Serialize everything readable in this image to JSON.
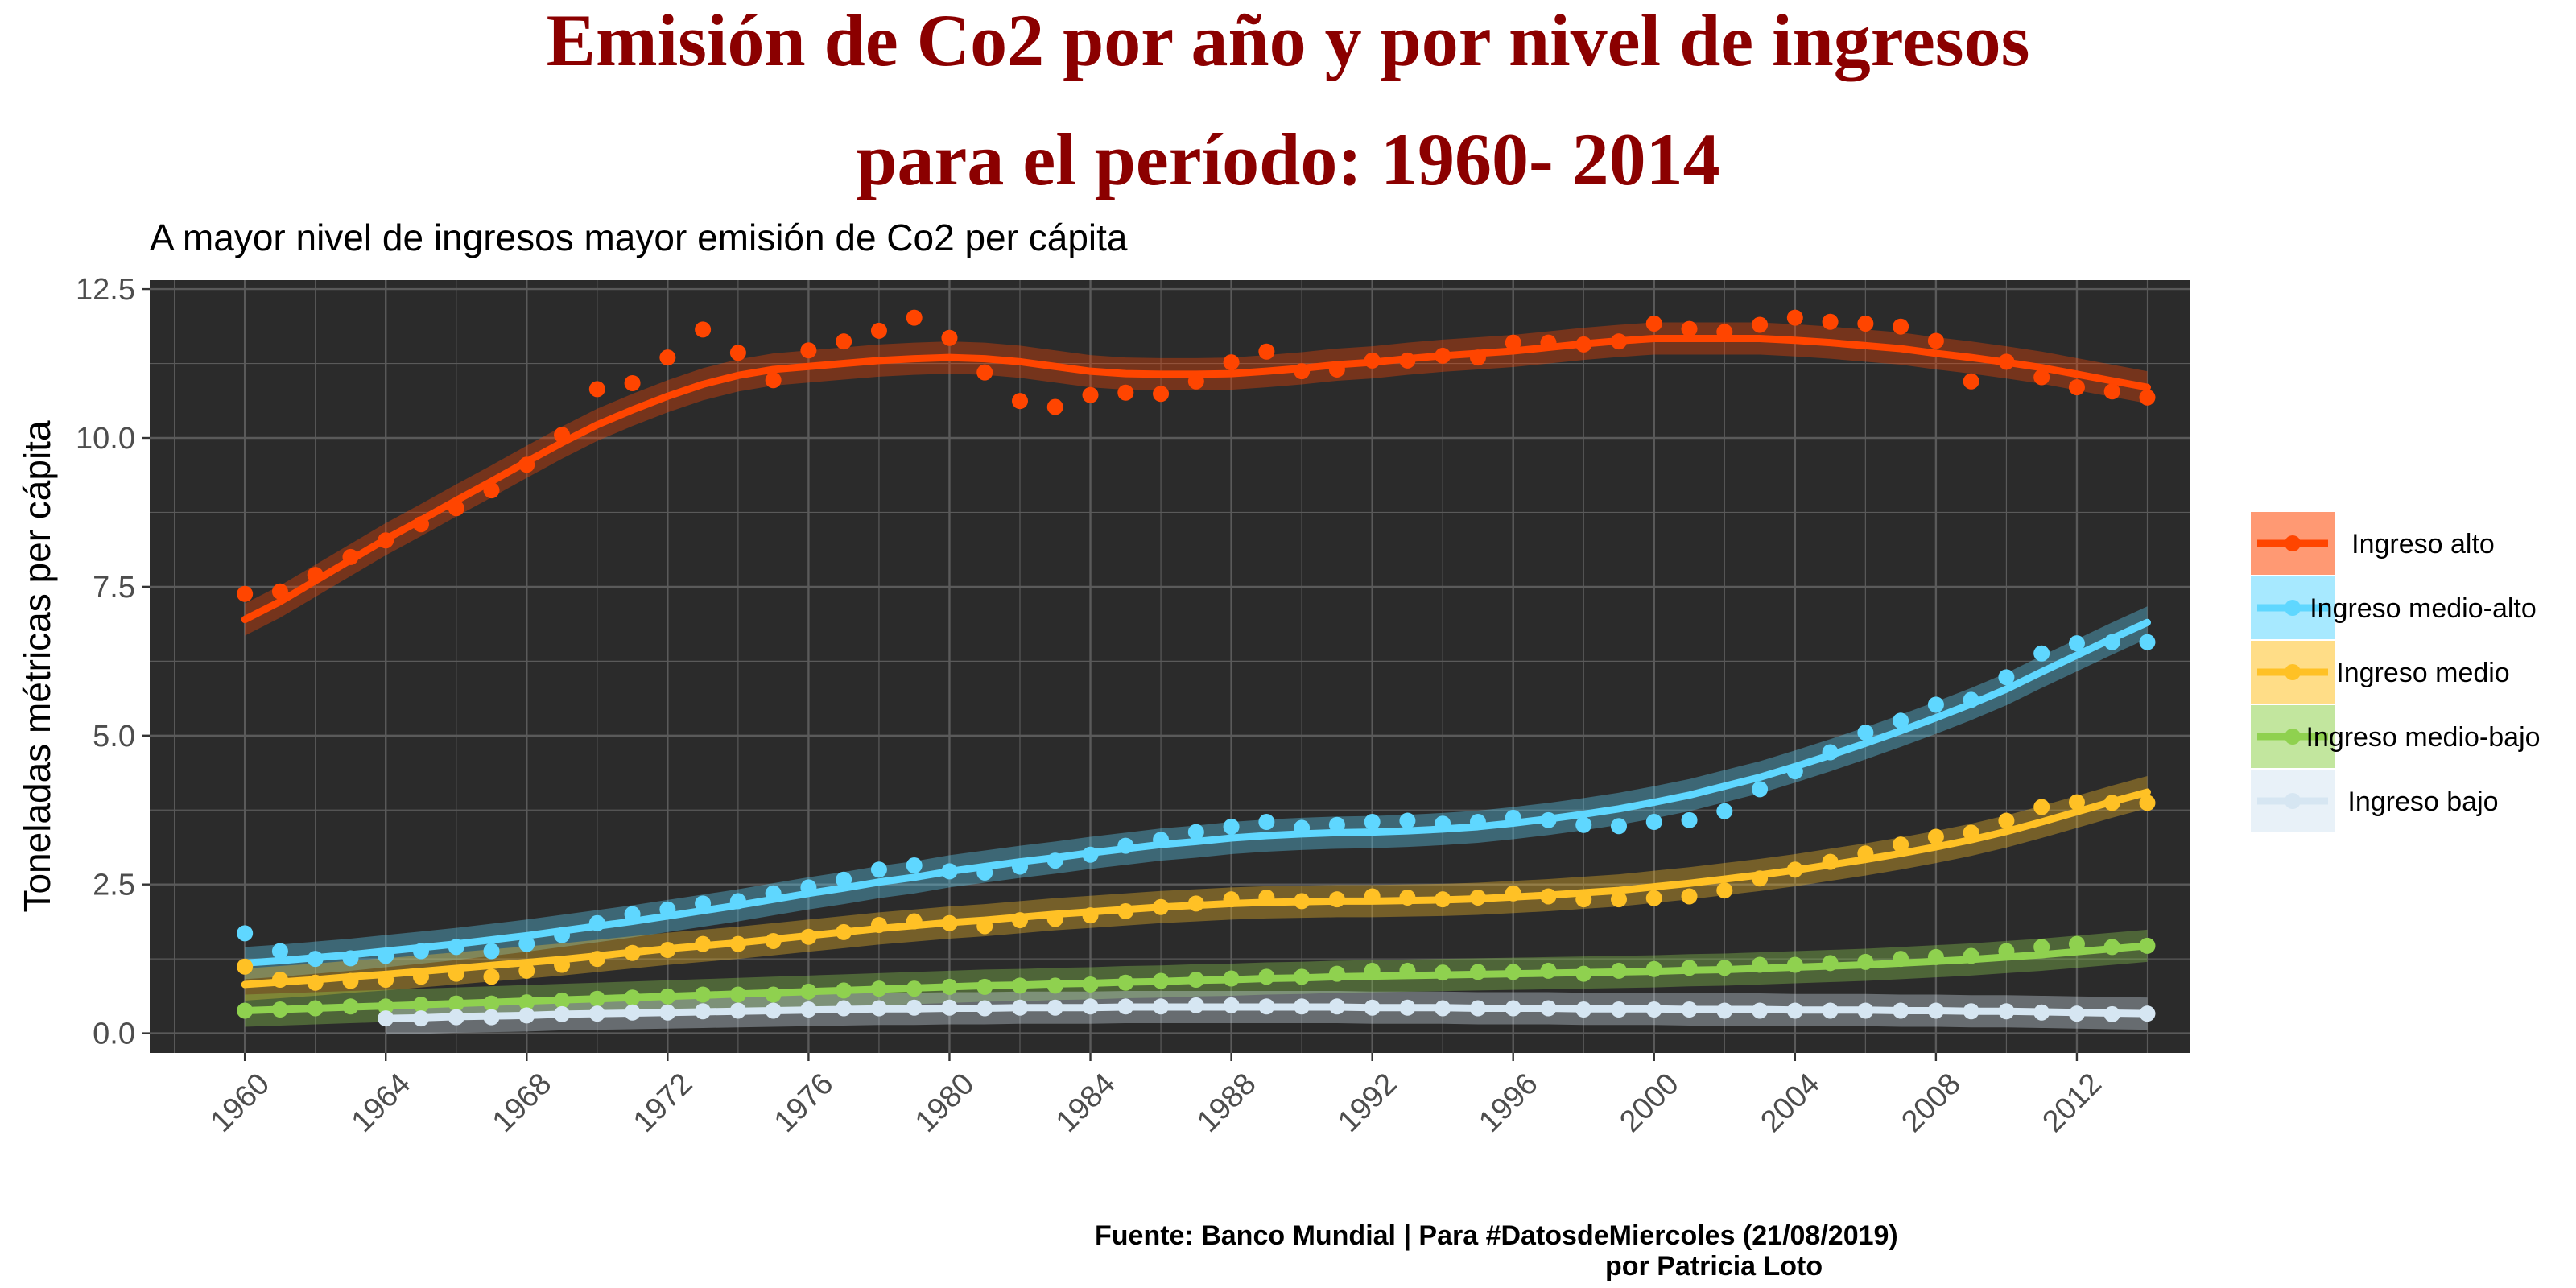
{
  "title_lines": [
    "Emisión de Co2 por año y por nivel de ingresos",
    "para el período: 1960- 2014"
  ],
  "subtitle": "A mayor nivel de ingresos mayor emisión de Co2 per cápita",
  "caption_lines": [
    "Fuente: Banco Mundial | Para #DatosdeMiercoles (21/08/2019)",
    "por Patricia Loto"
  ],
  "colors": {
    "panel_background": "#2b2b2b",
    "grid": "#5a5a5a",
    "title": "#8b0000"
  },
  "chart_data": {
    "type": "scatter",
    "smooth": true,
    "confidence_band": true,
    "title": "Emisión de Co2 por año y por nivel de ingresos para el período: 1960- 2014",
    "subtitle": "A mayor nivel de ingresos mayor emisión de Co2 per cápita",
    "xlabel": "",
    "ylabel": "Toneladas métricas per cápita",
    "xlim": [
      1957.3,
      2015.2
    ],
    "ylim": [
      -0.33,
      12.65
    ],
    "x_ticks": [
      1960,
      1964,
      1968,
      1972,
      1976,
      1980,
      1984,
      1988,
      1992,
      1996,
      2000,
      2004,
      2008,
      2012
    ],
    "y_ticks": [
      0.0,
      2.5,
      5.0,
      7.5,
      10.0,
      12.5
    ],
    "y_tick_labels": [
      "0.0",
      "2.5",
      "5.0",
      "7.5",
      "10.0",
      "12.5"
    ],
    "grid": true,
    "legend_position": "right",
    "series": [
      {
        "name": "Ingreso alto",
        "color": "#ff4500",
        "x": [
          1960,
          1961,
          1962,
          1963,
          1964,
          1965,
          1966,
          1967,
          1968,
          1969,
          1970,
          1971,
          1972,
          1973,
          1974,
          1975,
          1976,
          1977,
          1978,
          1979,
          1980,
          1981,
          1982,
          1983,
          1984,
          1985,
          1986,
          1987,
          1988,
          1989,
          1990,
          1991,
          1992,
          1993,
          1994,
          1995,
          1996,
          1997,
          1998,
          1999,
          2000,
          2001,
          2002,
          2003,
          2004,
          2005,
          2006,
          2007,
          2008,
          2009,
          2010,
          2011,
          2012,
          2013,
          2014
        ],
        "y": [
          7.38,
          7.42,
          7.7,
          8.0,
          8.28,
          8.55,
          8.82,
          9.12,
          9.55,
          10.05,
          10.82,
          10.92,
          11.35,
          11.82,
          11.43,
          10.97,
          11.47,
          11.62,
          11.8,
          12.02,
          11.68,
          11.1,
          10.62,
          10.52,
          10.72,
          10.76,
          10.74,
          10.95,
          11.27,
          11.45,
          11.12,
          11.15,
          11.3,
          11.3,
          11.38,
          11.35,
          11.6,
          11.6,
          11.57,
          11.62,
          11.92,
          11.83,
          11.78,
          11.9,
          12.02,
          11.95,
          11.92,
          11.87,
          11.63,
          10.95,
          11.28,
          11.02,
          10.85,
          10.78,
          10.68
        ],
        "smooth": [
          6.95,
          7.25,
          7.6,
          7.95,
          8.3,
          8.62,
          8.95,
          9.27,
          9.6,
          9.92,
          10.22,
          10.47,
          10.7,
          10.9,
          11.05,
          11.15,
          11.2,
          11.25,
          11.3,
          11.33,
          11.35,
          11.33,
          11.28,
          11.2,
          11.12,
          11.08,
          11.07,
          11.07,
          11.08,
          11.12,
          11.17,
          11.23,
          11.27,
          11.33,
          11.38,
          11.42,
          11.46,
          11.52,
          11.58,
          11.63,
          11.67,
          11.67,
          11.67,
          11.67,
          11.64,
          11.6,
          11.55,
          11.5,
          11.42,
          11.35,
          11.27,
          11.18,
          11.07,
          10.96,
          10.85
        ]
      },
      {
        "name": "Ingreso medio-alto",
        "color": "#5fd7ff",
        "x": [
          1960,
          1961,
          1962,
          1963,
          1964,
          1965,
          1966,
          1967,
          1968,
          1969,
          1970,
          1971,
          1972,
          1973,
          1974,
          1975,
          1976,
          1977,
          1978,
          1979,
          1980,
          1981,
          1982,
          1983,
          1984,
          1985,
          1986,
          1987,
          1988,
          1989,
          1990,
          1991,
          1992,
          1993,
          1994,
          1995,
          1996,
          1997,
          1998,
          1999,
          2000,
          2001,
          2002,
          2003,
          2004,
          2005,
          2006,
          2007,
          2008,
          2009,
          2010,
          2011,
          2012,
          2013,
          2014
        ],
        "y": [
          1.68,
          1.38,
          1.25,
          1.26,
          1.3,
          1.38,
          1.45,
          1.38,
          1.5,
          1.65,
          1.85,
          2.0,
          2.08,
          2.18,
          2.22,
          2.35,
          2.45,
          2.58,
          2.75,
          2.82,
          2.72,
          2.7,
          2.8,
          2.9,
          3.0,
          3.15,
          3.25,
          3.38,
          3.47,
          3.55,
          3.45,
          3.5,
          3.55,
          3.57,
          3.52,
          3.55,
          3.62,
          3.58,
          3.5,
          3.48,
          3.55,
          3.58,
          3.73,
          4.1,
          4.4,
          4.72,
          5.05,
          5.25,
          5.52,
          5.6,
          5.98,
          6.38,
          6.55,
          6.57,
          6.57
        ],
        "smooth": [
          1.18,
          1.22,
          1.27,
          1.32,
          1.38,
          1.44,
          1.5,
          1.57,
          1.64,
          1.72,
          1.8,
          1.88,
          1.97,
          2.06,
          2.15,
          2.25,
          2.35,
          2.44,
          2.54,
          2.62,
          2.72,
          2.8,
          2.88,
          2.95,
          3.03,
          3.1,
          3.17,
          3.22,
          3.28,
          3.32,
          3.35,
          3.37,
          3.38,
          3.4,
          3.43,
          3.47,
          3.53,
          3.6,
          3.68,
          3.77,
          3.88,
          4.0,
          4.15,
          4.3,
          4.48,
          4.67,
          4.87,
          5.08,
          5.3,
          5.53,
          5.78,
          6.07,
          6.35,
          6.63,
          6.9
        ]
      },
      {
        "name": "Ingreso medio",
        "color": "#ffc125",
        "x": [
          1960,
          1961,
          1962,
          1963,
          1964,
          1965,
          1966,
          1967,
          1968,
          1969,
          1970,
          1971,
          1972,
          1973,
          1974,
          1975,
          1976,
          1977,
          1978,
          1979,
          1980,
          1981,
          1982,
          1983,
          1984,
          1985,
          1986,
          1987,
          1988,
          1989,
          1990,
          1991,
          1992,
          1993,
          1994,
          1995,
          1996,
          1997,
          1998,
          1999,
          2000,
          2001,
          2002,
          2003,
          2004,
          2005,
          2006,
          2007,
          2008,
          2009,
          2010,
          2011,
          2012,
          2013,
          2014
        ],
        "y": [
          1.12,
          0.9,
          0.85,
          0.88,
          0.9,
          0.95,
          1.0,
          0.95,
          1.05,
          1.15,
          1.25,
          1.35,
          1.4,
          1.5,
          1.5,
          1.55,
          1.62,
          1.7,
          1.82,
          1.88,
          1.85,
          1.8,
          1.9,
          1.92,
          1.98,
          2.05,
          2.12,
          2.18,
          2.25,
          2.28,
          2.22,
          2.25,
          2.3,
          2.28,
          2.25,
          2.28,
          2.35,
          2.3,
          2.25,
          2.25,
          2.27,
          2.3,
          2.4,
          2.6,
          2.75,
          2.88,
          3.02,
          3.17,
          3.3,
          3.37,
          3.57,
          3.8,
          3.88,
          3.87,
          3.87
        ],
        "smooth": [
          0.82,
          0.86,
          0.9,
          0.95,
          0.99,
          1.04,
          1.09,
          1.14,
          1.19,
          1.24,
          1.3,
          1.36,
          1.42,
          1.47,
          1.52,
          1.58,
          1.64,
          1.7,
          1.76,
          1.81,
          1.86,
          1.9,
          1.95,
          2.0,
          2.04,
          2.08,
          2.12,
          2.15,
          2.18,
          2.2,
          2.21,
          2.22,
          2.22,
          2.23,
          2.24,
          2.26,
          2.29,
          2.32,
          2.36,
          2.4,
          2.46,
          2.52,
          2.59,
          2.66,
          2.74,
          2.83,
          2.92,
          3.02,
          3.13,
          3.25,
          3.39,
          3.55,
          3.72,
          3.89,
          4.05
        ]
      },
      {
        "name": "Ingreso medio-bajo",
        "color": "#8fd14f",
        "x": [
          1960,
          1961,
          1962,
          1963,
          1964,
          1965,
          1966,
          1967,
          1968,
          1969,
          1970,
          1971,
          1972,
          1973,
          1974,
          1975,
          1976,
          1977,
          1978,
          1979,
          1980,
          1981,
          1982,
          1983,
          1984,
          1985,
          1986,
          1987,
          1988,
          1989,
          1990,
          1991,
          1992,
          1993,
          1994,
          1995,
          1996,
          1997,
          1998,
          1999,
          2000,
          2001,
          2002,
          2003,
          2004,
          2005,
          2006,
          2007,
          2008,
          2009,
          2010,
          2011,
          2012,
          2013,
          2014
        ],
        "y": [
          0.38,
          0.4,
          0.42,
          0.45,
          0.45,
          0.48,
          0.5,
          0.5,
          0.52,
          0.55,
          0.58,
          0.6,
          0.62,
          0.65,
          0.65,
          0.65,
          0.7,
          0.72,
          0.75,
          0.75,
          0.78,
          0.78,
          0.8,
          0.8,
          0.82,
          0.85,
          0.88,
          0.9,
          0.92,
          0.95,
          0.95,
          1.0,
          1.05,
          1.05,
          1.02,
          1.03,
          1.03,
          1.05,
          1.0,
          1.05,
          1.08,
          1.1,
          1.1,
          1.15,
          1.15,
          1.18,
          1.2,
          1.25,
          1.28,
          1.3,
          1.38,
          1.45,
          1.5,
          1.45,
          1.47
        ],
        "smooth": [
          0.38,
          0.4,
          0.42,
          0.44,
          0.46,
          0.48,
          0.5,
          0.52,
          0.54,
          0.56,
          0.58,
          0.6,
          0.62,
          0.64,
          0.66,
          0.68,
          0.7,
          0.72,
          0.74,
          0.76,
          0.78,
          0.8,
          0.81,
          0.83,
          0.84,
          0.86,
          0.87,
          0.89,
          0.9,
          0.92,
          0.93,
          0.95,
          0.96,
          0.97,
          0.98,
          0.99,
          1.0,
          1.01,
          1.02,
          1.03,
          1.04,
          1.06,
          1.07,
          1.09,
          1.11,
          1.13,
          1.15,
          1.18,
          1.21,
          1.24,
          1.28,
          1.32,
          1.37,
          1.42,
          1.47
        ]
      },
      {
        "name": "Ingreso bajo",
        "color": "#d6e6f2",
        "x": [
          1964,
          1965,
          1966,
          1967,
          1968,
          1969,
          1970,
          1971,
          1972,
          1973,
          1974,
          1975,
          1976,
          1977,
          1978,
          1979,
          1980,
          1981,
          1982,
          1983,
          1984,
          1985,
          1986,
          1987,
          1988,
          1989,
          1990,
          1991,
          1992,
          1993,
          1994,
          1995,
          1996,
          1997,
          1998,
          1999,
          2000,
          2001,
          2002,
          2003,
          2004,
          2005,
          2006,
          2007,
          2008,
          2009,
          2010,
          2011,
          2012,
          2013,
          2014
        ],
        "y": [
          0.25,
          0.25,
          0.27,
          0.27,
          0.3,
          0.32,
          0.33,
          0.35,
          0.35,
          0.37,
          0.38,
          0.38,
          0.4,
          0.42,
          0.42,
          0.43,
          0.43,
          0.42,
          0.43,
          0.43,
          0.45,
          0.45,
          0.45,
          0.47,
          0.47,
          0.45,
          0.45,
          0.45,
          0.43,
          0.43,
          0.42,
          0.42,
          0.42,
          0.42,
          0.4,
          0.4,
          0.4,
          0.4,
          0.38,
          0.38,
          0.38,
          0.38,
          0.38,
          0.38,
          0.38,
          0.37,
          0.37,
          0.35,
          0.33,
          0.32,
          0.33
        ],
        "smooth": [
          0.25,
          0.26,
          0.28,
          0.29,
          0.3,
          0.32,
          0.33,
          0.34,
          0.35,
          0.36,
          0.37,
          0.38,
          0.39,
          0.4,
          0.41,
          0.41,
          0.42,
          0.42,
          0.43,
          0.43,
          0.43,
          0.44,
          0.44,
          0.44,
          0.44,
          0.44,
          0.44,
          0.44,
          0.43,
          0.43,
          0.43,
          0.42,
          0.42,
          0.42,
          0.41,
          0.41,
          0.41,
          0.4,
          0.4,
          0.4,
          0.39,
          0.39,
          0.39,
          0.38,
          0.38,
          0.37,
          0.37,
          0.36,
          0.35,
          0.34,
          0.33
        ]
      }
    ]
  }
}
